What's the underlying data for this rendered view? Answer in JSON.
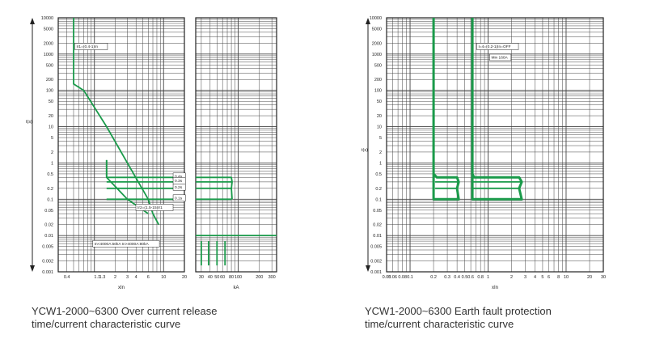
{
  "colors": {
    "curve": "#1a9a4a",
    "grid": "#444444",
    "axis": "#222222",
    "text": "#222222"
  },
  "chart_data": [
    {
      "type": "line",
      "caption": [
        "YCW1-2000~6300 Over current release",
        "time/current characteristic curve"
      ],
      "ylabel": "t(s)",
      "y_scale": "log",
      "ylim": [
        0.001,
        10000
      ],
      "yticks": [
        {
          "v": 10000,
          "t": "10000"
        },
        {
          "v": 5000,
          "t": "5000"
        },
        {
          "v": 2000,
          "t": "2000"
        },
        {
          "v": 1000,
          "t": "1000"
        },
        {
          "v": 500,
          "t": "500"
        },
        {
          "v": 200,
          "t": "200"
        },
        {
          "v": 100,
          "t": "100"
        },
        {
          "v": 50,
          "t": "50"
        },
        {
          "v": 20,
          "t": "20"
        },
        {
          "v": 10,
          "t": "10"
        },
        {
          "v": 5,
          "t": "5"
        },
        {
          "v": 2,
          "t": "2"
        },
        {
          "v": 1,
          "t": "1"
        },
        {
          "v": 0.5,
          "t": "0.5"
        },
        {
          "v": 0.2,
          "t": "0.2"
        },
        {
          "v": 0.1,
          "t": "0.1"
        },
        {
          "v": 0.05,
          "t": "0.05"
        },
        {
          "v": 0.02,
          "t": "0.02"
        },
        {
          "v": 0.01,
          "t": "0.01"
        },
        {
          "v": 0.005,
          "t": "0.005"
        },
        {
          "v": 0.002,
          "t": "0.002"
        },
        {
          "v": 0.001,
          "t": "0.001"
        }
      ],
      "panels": [
        {
          "xlabel": "xIn",
          "x_scale": "log",
          "xlim": [
            0.3,
            20
          ],
          "xticks": [
            {
              "v": 0.4,
              "t": "0.4"
            },
            {
              "v": 1.1,
              "t": "1.1"
            },
            {
              "v": 1.3,
              "t": "1.3"
            },
            {
              "v": 2,
              "t": "2"
            },
            {
              "v": 3,
              "t": "3"
            },
            {
              "v": 4,
              "t": "4"
            },
            {
              "v": 6,
              "t": "6"
            },
            {
              "v": 10,
              "t": "10"
            },
            {
              "v": 20,
              "t": "20"
            }
          ]
        },
        {
          "xlabel": "kA",
          "x_scale": "log",
          "xlim": [
            25,
            350
          ],
          "xticks": [
            {
              "v": 30,
              "t": "30"
            },
            {
              "v": 40,
              "t": "40"
            },
            {
              "v": 50,
              "t": "50"
            },
            {
              "v": 60,
              "t": "60"
            },
            {
              "v": 80,
              "t": "80"
            },
            {
              "v": 100,
              "t": "100"
            },
            {
              "v": 200,
              "t": "200"
            },
            {
              "v": 300,
              "t": "300"
            }
          ]
        }
      ],
      "series": [
        {
          "panel": 0,
          "points": [
            [
              0.5,
              10000
            ],
            [
              0.5,
              150
            ],
            [
              0.7,
              100
            ],
            [
              1.5,
              10
            ],
            [
              3,
              1
            ],
            [
              6,
              0.1
            ],
            [
              7,
              0.04
            ],
            [
              8.5,
              0.02
            ]
          ]
        },
        {
          "panel": 0,
          "points": [
            [
              1.5,
              1.2
            ],
            [
              1.5,
              0.4
            ],
            [
              20,
              0.4
            ]
          ]
        },
        {
          "panel": 0,
          "points": [
            [
              1.5,
              0.3
            ],
            [
              20,
              0.3
            ]
          ]
        },
        {
          "panel": 0,
          "points": [
            [
              1.5,
              0.2
            ],
            [
              20,
              0.2
            ]
          ]
        },
        {
          "panel": 0,
          "points": [
            [
              1.5,
              0.1
            ],
            [
              20,
              0.1
            ]
          ]
        },
        {
          "panel": 0,
          "points": [
            [
              1.5,
              1.2
            ],
            [
              1.5,
              0.4
            ],
            [
              3,
              0.1
            ],
            [
              6,
              0.04
            ]
          ]
        },
        {
          "panel": 1,
          "points": [
            [
              25,
              0.4
            ],
            [
              80,
              0.4
            ],
            [
              82,
              0.3
            ],
            [
              80,
              0.2
            ],
            [
              82,
              0.1
            ]
          ]
        },
        {
          "panel": 1,
          "points": [
            [
              25,
              0.3
            ],
            [
              80,
              0.3
            ]
          ]
        },
        {
          "panel": 1,
          "points": [
            [
              25,
              0.2
            ],
            [
              80,
              0.2
            ]
          ]
        },
        {
          "panel": 1,
          "points": [
            [
              25,
              0.1
            ],
            [
              80,
              0.1
            ]
          ]
        },
        {
          "panel": 1,
          "points": [
            [
              25,
              0.01
            ],
            [
              350,
              0.01
            ]
          ]
        },
        {
          "panel": 1,
          "points": [
            [
              30,
              0.007
            ],
            [
              30,
              0.0015
            ]
          ]
        },
        {
          "panel": 1,
          "points": [
            [
              38,
              0.007
            ],
            [
              38,
              0.0015
            ]
          ]
        },
        {
          "panel": 1,
          "points": [
            [
              50,
              0.007
            ],
            [
              50,
              0.0015
            ]
          ]
        },
        {
          "panel": 1,
          "points": [
            [
              65,
              0.007
            ],
            [
              65,
              0.0015
            ]
          ]
        }
      ],
      "annotations": [
        {
          "panel": 0,
          "x": 0.55,
          "y": 1500,
          "text": "Ir1=(0.4-1)In"
        },
        {
          "panel": 0,
          "x": 4.2,
          "y": 0.055,
          "text": "Ir2=(1.5-15)Ir1"
        },
        {
          "panel": 0,
          "x": 1.0,
          "y": 0.0055,
          "text": "In<4000A:50kA  In>4000A:80kA"
        },
        {
          "panel": 0,
          "x": 14.5,
          "y": 0.4,
          "text": "0.4s"
        },
        {
          "panel": 0,
          "x": 14.5,
          "y": 0.3,
          "text": "0.3s"
        },
        {
          "panel": 0,
          "x": 14.5,
          "y": 0.2,
          "text": "0.2s"
        },
        {
          "panel": 0,
          "x": 14.5,
          "y": 0.1,
          "text": "0.1s"
        }
      ]
    },
    {
      "type": "line",
      "caption": [
        "YCW1-2000~6300 Earth fault protection",
        "time/current characteristic curve"
      ],
      "ylabel": "t(s)",
      "y_scale": "log",
      "ylim": [
        0.001,
        10000
      ],
      "yticks": [
        {
          "v": 10000,
          "t": "10000"
        },
        {
          "v": 5000,
          "t": "5000"
        },
        {
          "v": 2000,
          "t": "2000"
        },
        {
          "v": 1000,
          "t": "1000"
        },
        {
          "v": 500,
          "t": "500"
        },
        {
          "v": 200,
          "t": "200"
        },
        {
          "v": 100,
          "t": "100"
        },
        {
          "v": 50,
          "t": "50"
        },
        {
          "v": 20,
          "t": "20"
        },
        {
          "v": 10,
          "t": "10"
        },
        {
          "v": 5,
          "t": "5"
        },
        {
          "v": 2,
          "t": "2"
        },
        {
          "v": 1,
          "t": "1"
        },
        {
          "v": 0.5,
          "t": "0.5"
        },
        {
          "v": 0.2,
          "t": "0.2"
        },
        {
          "v": 0.1,
          "t": "0.1"
        },
        {
          "v": 0.05,
          "t": "0.05"
        },
        {
          "v": 0.02,
          "t": "0.02"
        },
        {
          "v": 0.01,
          "t": "0.01"
        },
        {
          "v": 0.005,
          "t": "0.005"
        },
        {
          "v": 0.002,
          "t": "0.002"
        },
        {
          "v": 0.001,
          "t": "0.001"
        }
      ],
      "panels": [
        {
          "xlabel": "xIn",
          "x_scale": "log",
          "xlim": [
            0.05,
            30
          ],
          "xticks": [
            {
              "v": 0.05,
              "t": "0.05"
            },
            {
              "v": 0.06,
              "t": "0.06"
            },
            {
              "v": 0.08,
              "t": "0.08"
            },
            {
              "v": 0.1,
              "t": "0.1"
            },
            {
              "v": 0.2,
              "t": "0.2"
            },
            {
              "v": 0.3,
              "t": "0.3"
            },
            {
              "v": 0.4,
              "t": "0.4"
            },
            {
              "v": 0.5,
              "t": "0.5"
            },
            {
              "v": 0.6,
              "t": "0.6"
            },
            {
              "v": 0.8,
              "t": "0.8"
            },
            {
              "v": 1,
              "t": "1"
            },
            {
              "v": 2,
              "t": "2"
            },
            {
              "v": 3,
              "t": "3"
            },
            {
              "v": 4,
              "t": "4"
            },
            {
              "v": 5,
              "t": "5"
            },
            {
              "v": 6,
              "t": "6"
            },
            {
              "v": 8,
              "t": "8"
            },
            {
              "v": 10,
              "t": "10"
            },
            {
              "v": 20,
              "t": "20"
            },
            {
              "v": 30,
              "t": "30"
            }
          ]
        }
      ],
      "series": [
        {
          "panel": 0,
          "points": [
            [
              0.2,
              10000
            ],
            [
              0.2,
              0.5
            ],
            [
              0.22,
              0.4
            ],
            [
              0.4,
              0.4
            ],
            [
              0.42,
              0.3
            ],
            [
              0.4,
              0.2
            ],
            [
              0.42,
              0.1
            ],
            [
              0.2,
              0.1
            ],
            [
              0.2,
              10000
            ]
          ]
        },
        {
          "panel": 0,
          "points": [
            [
              0.21,
              0.3
            ],
            [
              0.41,
              0.3
            ]
          ]
        },
        {
          "panel": 0,
          "points": [
            [
              0.21,
              0.2
            ],
            [
              0.41,
              0.2
            ]
          ]
        },
        {
          "panel": 0,
          "points": [
            [
              0.63,
              10000
            ],
            [
              0.63,
              0.5
            ],
            [
              0.66,
              0.4
            ],
            [
              2.5,
              0.4
            ],
            [
              2.7,
              0.3
            ],
            [
              2.5,
              0.2
            ],
            [
              2.7,
              0.1
            ],
            [
              0.63,
              0.1
            ],
            [
              0.63,
              10000
            ]
          ]
        },
        {
          "panel": 0,
          "points": [
            [
              0.64,
              0.3
            ],
            [
              2.6,
              0.3
            ]
          ]
        },
        {
          "panel": 0,
          "points": [
            [
              0.64,
              0.2
            ],
            [
              2.6,
              0.2
            ]
          ]
        }
      ],
      "annotations": [
        {
          "panel": 0,
          "x": 0.75,
          "y": 1500,
          "text": "I=4=(0.2-1)In=OFF"
        },
        {
          "panel": 0,
          "x": 1.1,
          "y": 750,
          "text": "Min 160A"
        }
      ]
    }
  ]
}
